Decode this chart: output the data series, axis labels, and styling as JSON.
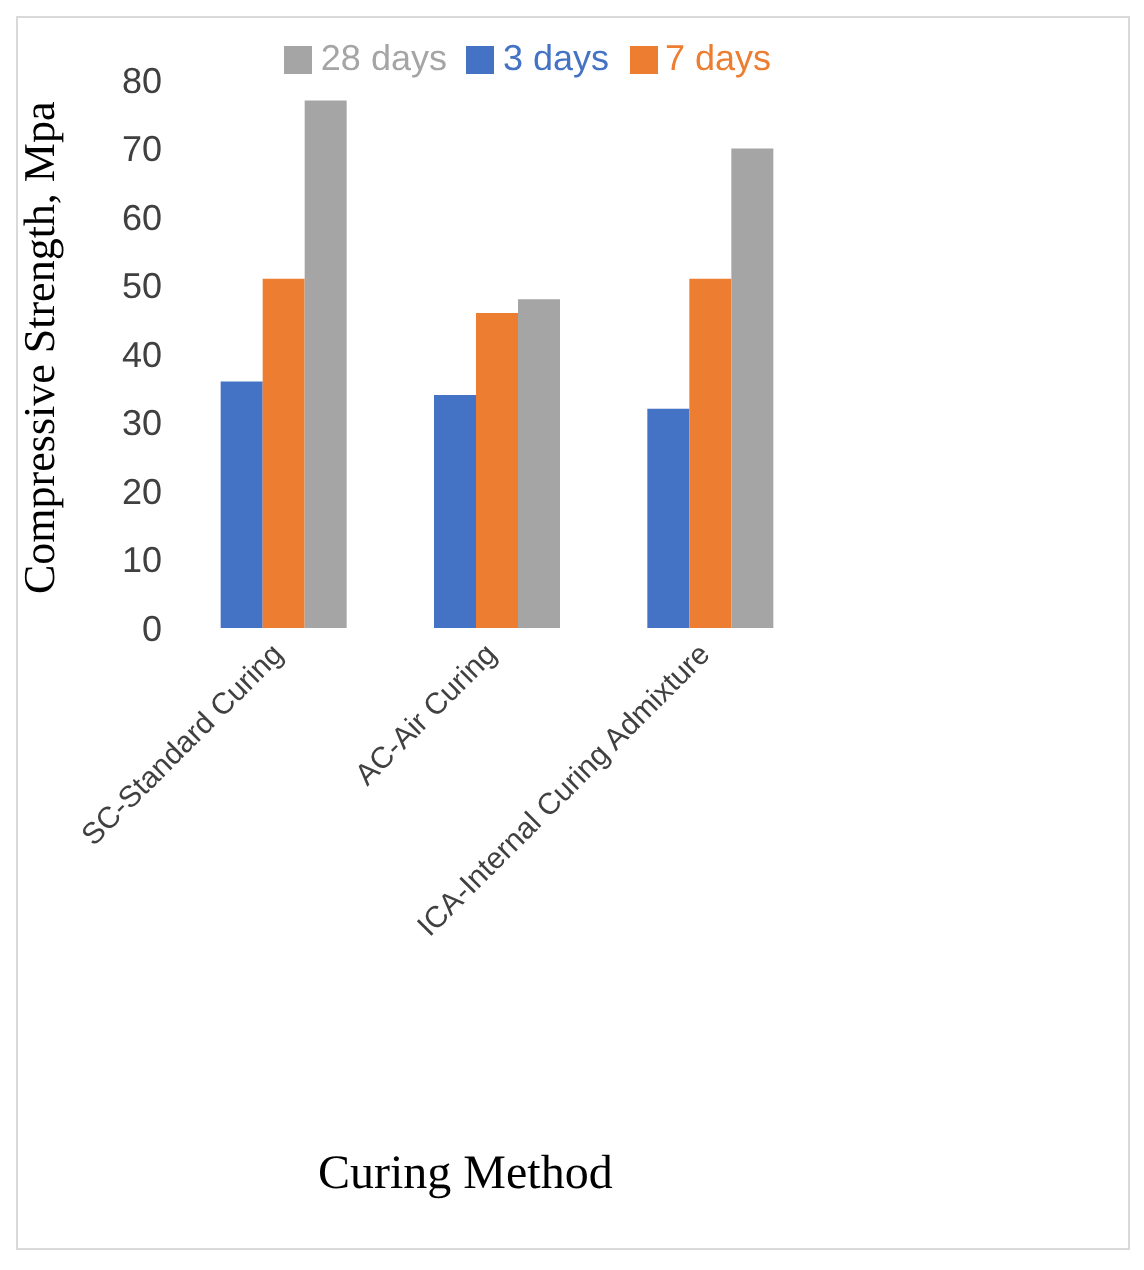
{
  "chart_data": {
    "type": "bar",
    "xlabel": "Curing Method",
    "ylabel": "Compressive Strength, Mpa",
    "categories": [
      "SC-Standard Curing",
      "AC-Air Curing",
      "ICA-Internal Curing Admixture"
    ],
    "series": [
      {
        "name": "3 days",
        "color": "#4472c4",
        "values": [
          36,
          34,
          32
        ]
      },
      {
        "name": "7 days",
        "color": "#ed7d31",
        "values": [
          51,
          46,
          51
        ]
      },
      {
        "name": "28 days",
        "color": "#a5a5a5",
        "values": [
          77,
          48,
          70
        ]
      }
    ],
    "ylim": [
      0,
      80
    ],
    "yticks": [
      0,
      10,
      20,
      30,
      40,
      50,
      60,
      70,
      80
    ],
    "grid": false,
    "legend": "top"
  }
}
